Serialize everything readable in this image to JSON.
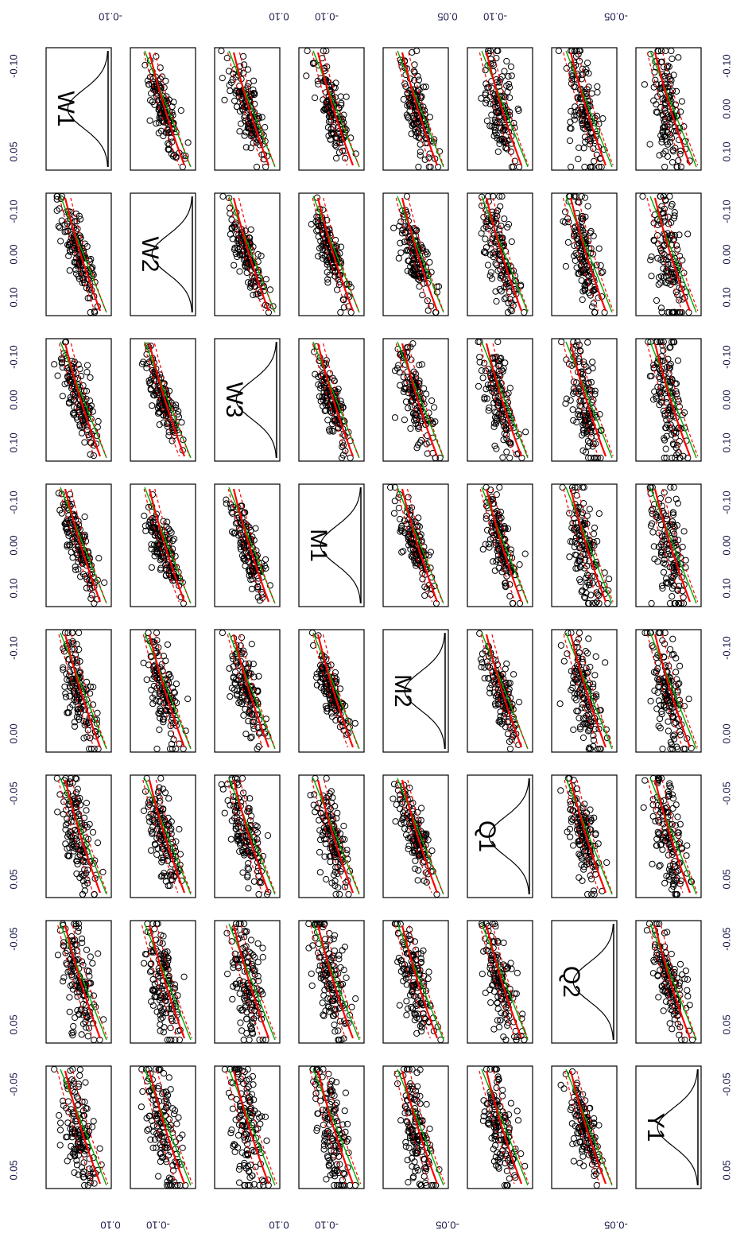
{
  "chart_data": {
    "type": "scatter",
    "title": "",
    "orientation": "rotated-90-clockwise",
    "variables": [
      "W1",
      "W2",
      "W3",
      "M1",
      "M2",
      "Q1",
      "Q2",
      "Y1"
    ],
    "axis_ticks": {
      "W1": [
        "-0.10",
        "0.05"
      ],
      "W2": [
        "-0.10",
        "0.10"
      ],
      "W3": [
        "-0.10",
        "0.10"
      ],
      "M1": [
        "-0.10",
        "0.05"
      ],
      "M2": [
        "-0.10",
        "0.05"
      ],
      "Q1": [
        "-0.05",
        "0.05"
      ],
      "Q2": [
        "-0.05",
        "0.05"
      ],
      "Y1": [
        "-0.05"
      ]
    },
    "bottom_axis_labels": [
      [
        "-0.10",
        "0.05"
      ],
      [
        "-0.10",
        "0.00",
        "0.10"
      ],
      [
        "-0.10",
        "0.00",
        "0.10"
      ],
      [
        "-0.10",
        "0.00",
        "0.10"
      ],
      [
        "-0.10",
        "0.00"
      ],
      [
        "-0.05",
        "0.05"
      ],
      [
        "-0.05",
        "0.05"
      ],
      [
        "-0.05",
        "0.05"
      ]
    ],
    "top_axis_labels": [
      [
        "-0.10",
        "0.00",
        "0.10"
      ],
      [
        "-0.10",
        "0.00",
        "0.10"
      ],
      [
        "-0.10",
        "0.00",
        "0.10"
      ],
      [
        "-0.10",
        "0.00",
        "0.10"
      ],
      [
        "-0.10",
        "0.00"
      ],
      [
        "-0.05",
        "0.05"
      ],
      [
        "-0.05",
        "0.05"
      ],
      [
        "-0.05",
        "0.05"
      ]
    ],
    "left_axis_labels": [
      [
        "0.10",
        "-0.10"
      ],
      [
        "0.10",
        "-0.10"
      ],
      [
        "-0.05"
      ],
      [
        "-0.05"
      ]
    ],
    "right_axis_labels": [
      [
        "-0.10"
      ],
      [
        "0.10",
        "-0.10"
      ],
      [
        "0.05",
        "-0.10"
      ],
      [
        "-0.05"
      ]
    ],
    "diag_labels": [
      "W1",
      "W2",
      "W3",
      "M1",
      "M2",
      "Q1",
      "Q2",
      "Y1"
    ],
    "series": [
      {
        "kind": "points",
        "color": "#000000",
        "n_per_panel": 140
      },
      {
        "kind": "lowess_smoother",
        "color": "#ff0000"
      },
      {
        "kind": "spread_band",
        "color": "#ff0000"
      },
      {
        "kind": "linear_fit",
        "color": "#00aa00"
      }
    ],
    "panel_slopes": [
      [
        1.0,
        0.92,
        0.88,
        0.9,
        0.82,
        0.72,
        0.6,
        0.45
      ],
      [
        0.92,
        1.0,
        0.95,
        0.93,
        0.85,
        0.78,
        0.55,
        0.4
      ],
      [
        0.88,
        0.95,
        1.0,
        0.94,
        0.86,
        0.8,
        0.58,
        0.42
      ],
      [
        0.9,
        0.93,
        0.94,
        1.0,
        0.95,
        0.85,
        0.62,
        0.48
      ],
      [
        0.82,
        0.85,
        0.86,
        0.95,
        1.0,
        0.92,
        0.7,
        0.55
      ],
      [
        0.72,
        0.78,
        0.8,
        0.85,
        0.92,
        1.0,
        0.82,
        0.65
      ],
      [
        0.6,
        0.55,
        0.58,
        0.62,
        0.7,
        0.82,
        1.0,
        0.85
      ],
      [
        0.45,
        0.4,
        0.42,
        0.48,
        0.55,
        0.65,
        0.85,
        1.0
      ]
    ],
    "colors": {
      "points": "#000000",
      "smoother": "#ff0000",
      "fit": "#00aa00",
      "frame": "#000000",
      "label": "#000000"
    }
  }
}
